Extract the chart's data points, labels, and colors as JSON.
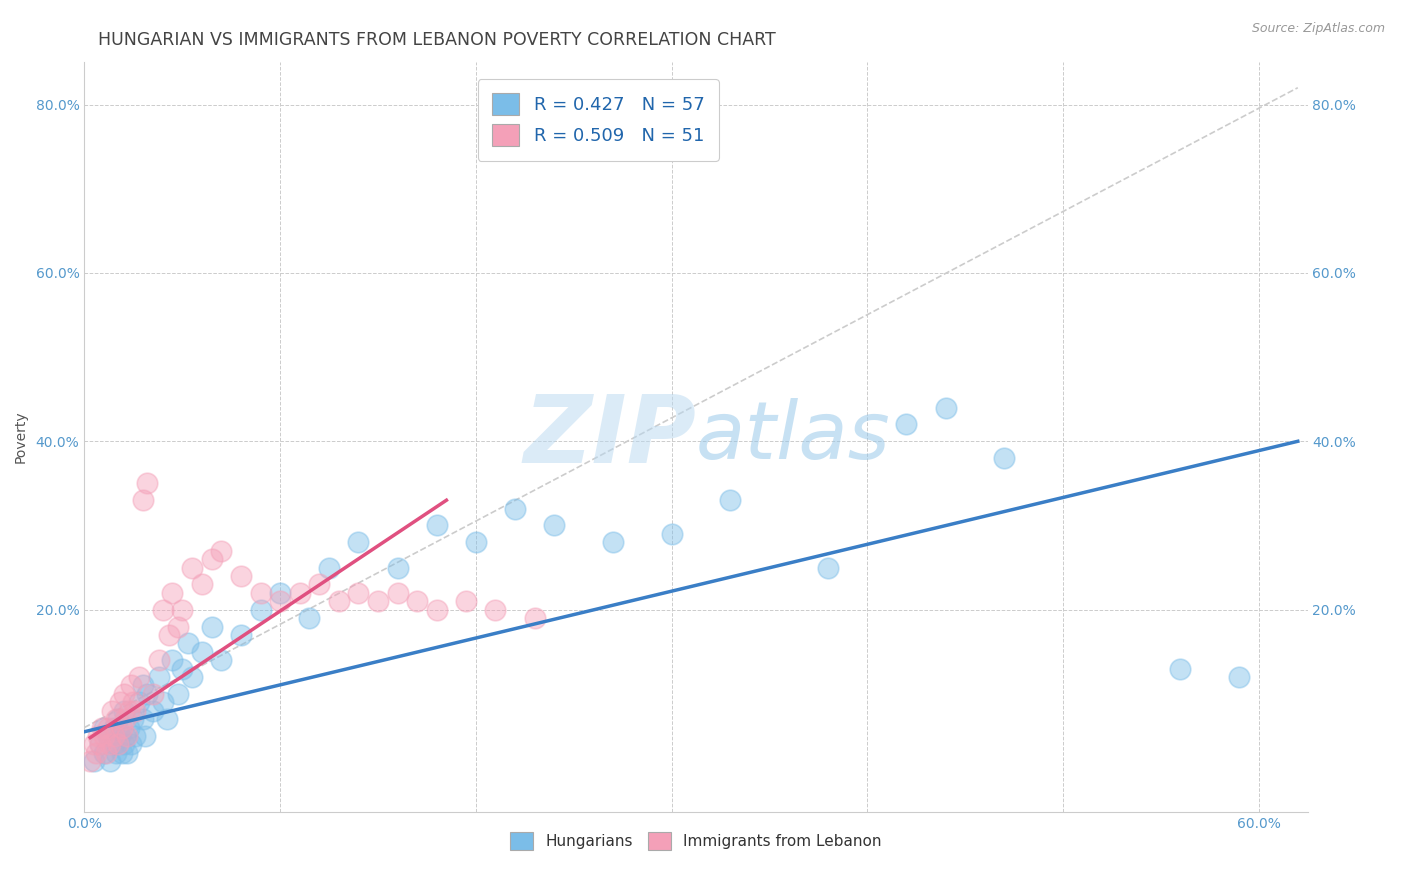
{
  "title": "HUNGARIAN VS IMMIGRANTS FROM LEBANON POVERTY CORRELATION CHART",
  "source_text": "Source: ZipAtlas.com",
  "ylabel": "Poverty",
  "legend1_label": "R = 0.427   N = 57",
  "legend2_label": "R = 0.509   N = 51",
  "bottom_legend1": "Hungarians",
  "bottom_legend2": "Immigrants from Lebanon",
  "blue_color": "#7bbde8",
  "pink_color": "#f4a0b8",
  "trend_blue": "#3a7ec6",
  "trend_pink": "#e05080",
  "watermark_text": "ZIPAtlas",
  "xlim": [
    0.0,
    0.625
  ],
  "ylim": [
    -0.04,
    0.85
  ],
  "xticks": [
    0.0,
    0.1,
    0.2,
    0.3,
    0.4,
    0.5,
    0.6
  ],
  "xticklabels": [
    "0.0%",
    "",
    "",
    "",
    "",
    "",
    "60.0%"
  ],
  "yticks": [
    0.0,
    0.2,
    0.4,
    0.6,
    0.8
  ],
  "yticklabels": [
    "",
    "20.0%",
    "40.0%",
    "60.0%",
    "80.0%"
  ],
  "blue_scatter_x": [
    0.005,
    0.008,
    0.01,
    0.01,
    0.012,
    0.013,
    0.015,
    0.015,
    0.016,
    0.017,
    0.018,
    0.019,
    0.02,
    0.02,
    0.021,
    0.022,
    0.023,
    0.024,
    0.025,
    0.026,
    0.028,
    0.03,
    0.03,
    0.031,
    0.032,
    0.035,
    0.038,
    0.04,
    0.042,
    0.045,
    0.048,
    0.05,
    0.053,
    0.055,
    0.06,
    0.065,
    0.07,
    0.08,
    0.09,
    0.1,
    0.115,
    0.125,
    0.14,
    0.16,
    0.18,
    0.2,
    0.22,
    0.24,
    0.27,
    0.3,
    0.33,
    0.38,
    0.42,
    0.44,
    0.47,
    0.56,
    0.59
  ],
  "blue_scatter_y": [
    0.02,
    0.04,
    0.06,
    0.03,
    0.05,
    0.02,
    0.04,
    0.06,
    0.03,
    0.07,
    0.05,
    0.03,
    0.08,
    0.04,
    0.05,
    0.03,
    0.06,
    0.04,
    0.07,
    0.05,
    0.09,
    0.11,
    0.07,
    0.05,
    0.1,
    0.08,
    0.12,
    0.09,
    0.07,
    0.14,
    0.1,
    0.13,
    0.16,
    0.12,
    0.15,
    0.18,
    0.14,
    0.17,
    0.2,
    0.22,
    0.19,
    0.25,
    0.28,
    0.25,
    0.3,
    0.28,
    0.32,
    0.3,
    0.28,
    0.29,
    0.33,
    0.25,
    0.42,
    0.44,
    0.38,
    0.13,
    0.12
  ],
  "pink_scatter_x": [
    0.003,
    0.005,
    0.006,
    0.007,
    0.008,
    0.009,
    0.01,
    0.011,
    0.012,
    0.013,
    0.014,
    0.015,
    0.016,
    0.017,
    0.018,
    0.019,
    0.02,
    0.021,
    0.022,
    0.023,
    0.024,
    0.025,
    0.026,
    0.028,
    0.03,
    0.032,
    0.035,
    0.038,
    0.04,
    0.043,
    0.045,
    0.048,
    0.05,
    0.055,
    0.06,
    0.065,
    0.07,
    0.08,
    0.09,
    0.1,
    0.11,
    0.12,
    0.13,
    0.14,
    0.15,
    0.16,
    0.17,
    0.18,
    0.195,
    0.21,
    0.23
  ],
  "pink_scatter_y": [
    0.02,
    0.04,
    0.03,
    0.05,
    0.04,
    0.06,
    0.05,
    0.03,
    0.06,
    0.04,
    0.08,
    0.05,
    0.07,
    0.04,
    0.09,
    0.06,
    0.1,
    0.07,
    0.05,
    0.08,
    0.11,
    0.09,
    0.08,
    0.12,
    0.33,
    0.35,
    0.1,
    0.14,
    0.2,
    0.17,
    0.22,
    0.18,
    0.2,
    0.25,
    0.23,
    0.26,
    0.27,
    0.24,
    0.22,
    0.21,
    0.22,
    0.23,
    0.21,
    0.22,
    0.21,
    0.22,
    0.21,
    0.2,
    0.21,
    0.2,
    0.19
  ],
  "blue_trend_x": [
    0.0,
    0.62
  ],
  "blue_trend_y": [
    0.055,
    0.4
  ],
  "pink_trend_x": [
    0.003,
    0.185
  ],
  "pink_trend_y": [
    0.048,
    0.33
  ],
  "background_color": "#ffffff",
  "grid_color": "#cccccc",
  "title_color": "#444444",
  "axis_color": "#5599cc",
  "tick_color": "#5599cc"
}
